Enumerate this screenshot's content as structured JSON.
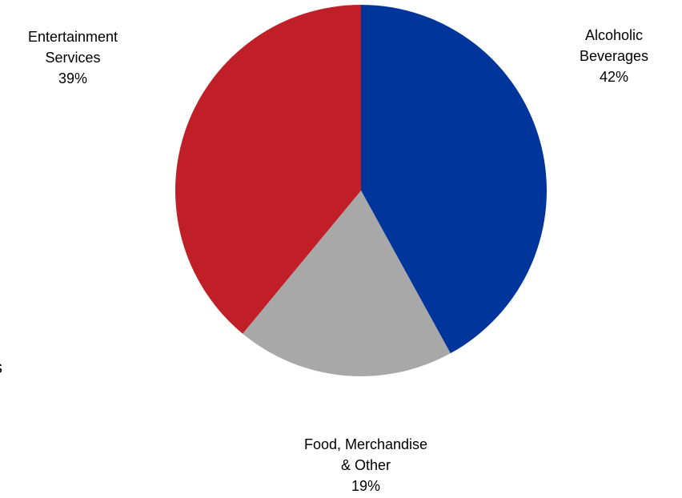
{
  "chart_data": {
    "type": "pie",
    "title": "",
    "start_angle_deg": 0,
    "direction": "clockwise",
    "legend": "none",
    "slices": [
      {
        "label_lines": [
          "Alcoholic",
          "Beverages"
        ],
        "percent_label": "42%",
        "value": 42,
        "color": "#00359B"
      },
      {
        "label_lines": [
          "Food, Merchandise",
          "& Other"
        ],
        "percent_label": "19%",
        "value": 19,
        "color": "#A8A8A8"
      },
      {
        "label_lines": [
          "Entertainment",
          "Services"
        ],
        "percent_label": "39%",
        "value": 39,
        "color": "#C01F27"
      }
    ]
  },
  "edge_fragment_text": "s"
}
